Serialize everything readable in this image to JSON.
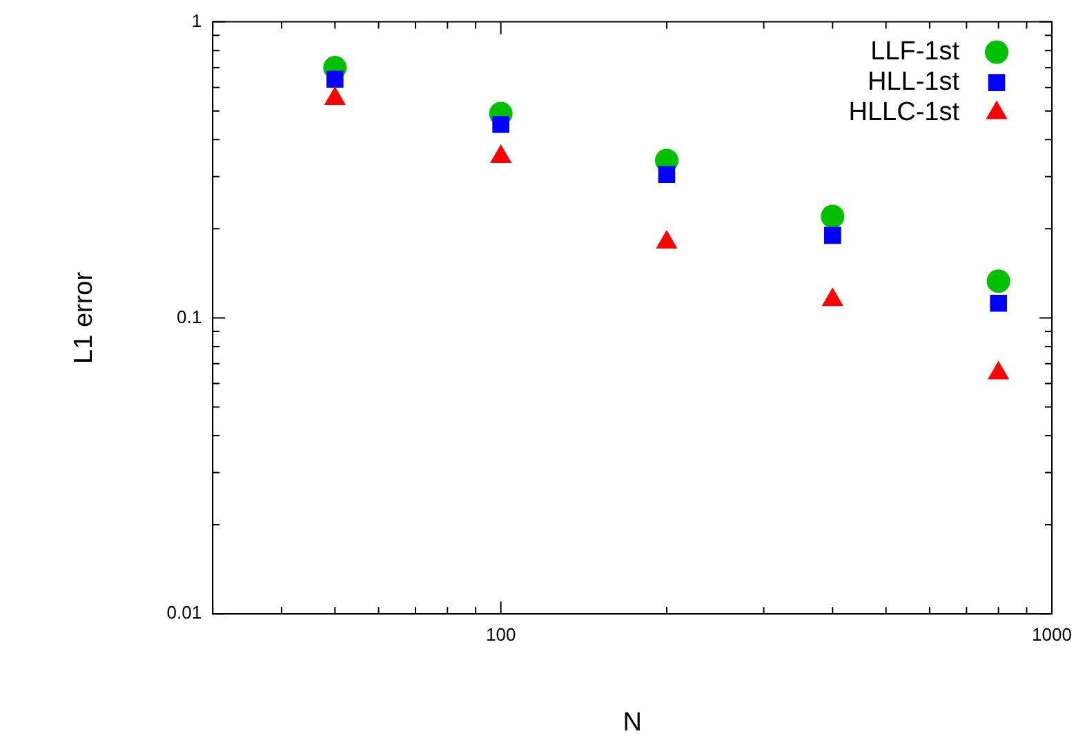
{
  "chart_data": {
    "type": "scatter",
    "xlabel": "N",
    "ylabel": "L1 error",
    "log": "xy",
    "grid": false,
    "legend": "top right",
    "x": [
      50,
      100,
      200,
      400,
      800
    ],
    "series": [
      {
        "name": "LLF-1st",
        "color": "#00c000",
        "marker": "circle",
        "values": [
          0.7,
          0.49,
          0.34,
          0.22,
          0.133
        ]
      },
      {
        "name": "HLL-1st",
        "color": "#0000ff",
        "marker": "square",
        "values": [
          0.64,
          0.45,
          0.305,
          0.19,
          0.112
        ]
      },
      {
        "name": "HLLC-1st",
        "color": "#ff0000",
        "marker": "triangle",
        "values": [
          0.55,
          0.35,
          0.18,
          0.115,
          0.065
        ]
      }
    ],
    "xlim": [
      30,
      1000
    ],
    "xticks": [
      {
        "value": 30,
        "label": null
      },
      {
        "value": 40,
        "label": null
      },
      {
        "value": 50,
        "label": null
      },
      {
        "value": 60,
        "label": null
      },
      {
        "value": 70,
        "label": null
      },
      {
        "value": 80,
        "label": null
      },
      {
        "value": 90,
        "label": null
      },
      100,
      {
        "value": 200,
        "label": null
      },
      {
        "value": 300,
        "label": null
      },
      {
        "value": 400,
        "label": null
      },
      {
        "value": 500,
        "label": null
      },
      {
        "value": 600,
        "label": null
      },
      {
        "value": 700,
        "label": null
      },
      {
        "value": 800,
        "label": null
      },
      {
        "value": 900,
        "label": null
      },
      1000
    ],
    "ylim": [
      0.01,
      1
    ],
    "yticks": [
      0.01,
      {
        "value": 0.02,
        "label": null
      },
      {
        "value": 0.03,
        "label": null
      },
      {
        "value": 0.04,
        "label": null
      },
      {
        "value": 0.05,
        "label": null
      },
      {
        "value": 0.06,
        "label": null
      },
      {
        "value": 0.07,
        "label": null
      },
      {
        "value": 0.08,
        "label": null
      },
      {
        "value": 0.09,
        "label": null
      },
      0.1,
      {
        "value": 0.2,
        "label": null
      },
      {
        "value": 0.3,
        "label": null
      },
      {
        "value": 0.4,
        "label": null
      },
      {
        "value": 0.5,
        "label": null
      },
      {
        "value": 0.6,
        "label": null
      },
      {
        "value": 0.7,
        "label": null
      },
      {
        "value": 0.8,
        "label": null
      },
      {
        "value": 0.9,
        "label": null
      },
      1
    ]
  }
}
